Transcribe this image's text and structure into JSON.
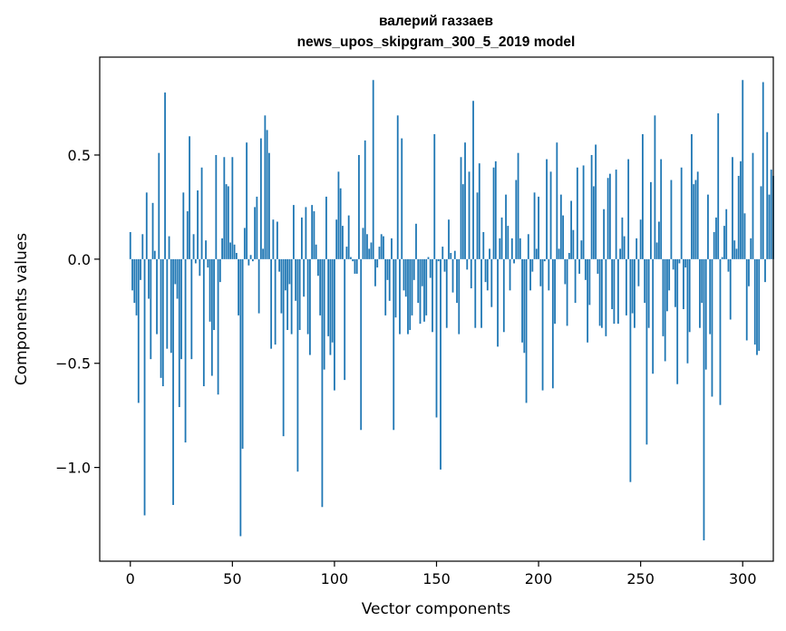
{
  "chart_data": {
    "type": "bar",
    "title_line1": "валерий газзаев",
    "title_line2": "news_upos_skipgram_300_5_2019 model",
    "xlabel": "Vector components",
    "ylabel": "Components values",
    "xlim": [
      -15,
      315
    ],
    "ylim": [
      -1.45,
      0.97
    ],
    "xticks": [
      {
        "value": 0,
        "label": "0"
      },
      {
        "value": 50,
        "label": "50"
      },
      {
        "value": 100,
        "label": "100"
      },
      {
        "value": 150,
        "label": "150"
      },
      {
        "value": 200,
        "label": "200"
      },
      {
        "value": 250,
        "label": "250"
      },
      {
        "value": 300,
        "label": "300"
      }
    ],
    "yticks": [
      {
        "value": 0.5,
        "label": "0.5"
      },
      {
        "value": 0.0,
        "label": "0.0"
      },
      {
        "value": -0.5,
        "label": "−0.5"
      },
      {
        "value": -1.0,
        "label": "−1.0"
      }
    ],
    "bar_color": "#1f77b4",
    "grid": false,
    "legend": "none",
    "values": [
      0.13,
      -0.15,
      -0.21,
      -0.27,
      -0.69,
      -0.1,
      0.12,
      -1.23,
      0.32,
      -0.19,
      -0.48,
      0.27,
      0.04,
      -0.36,
      0.51,
      -0.57,
      -0.61,
      0.8,
      -0.43,
      0.11,
      -0.45,
      -1.18,
      -0.12,
      -0.19,
      -0.71,
      -0.48,
      0.32,
      -0.88,
      0.23,
      0.59,
      -0.48,
      0.12,
      -0.02,
      0.33,
      -0.08,
      0.44,
      -0.61,
      0.09,
      -0.04,
      -0.3,
      -0.56,
      -0.34,
      0.5,
      -0.65,
      -0.11,
      0.1,
      0.49,
      0.36,
      0.35,
      0.08,
      0.49,
      0.07,
      0.03,
      -0.27,
      -1.33,
      -0.91,
      0.15,
      0.56,
      -0.03,
      0.02,
      -0.01,
      0.25,
      0.3,
      -0.26,
      0.58,
      0.05,
      0.69,
      0.62,
      0.51,
      -0.43,
      0.19,
      -0.41,
      0.18,
      -0.06,
      -0.26,
      -0.85,
      -0.15,
      -0.34,
      -0.12,
      -0.36,
      0.26,
      -0.2,
      -1.02,
      -0.34,
      0.2,
      -0.18,
      0.25,
      -0.36,
      -0.46,
      0.26,
      0.23,
      0.07,
      -0.08,
      -0.27,
      -1.19,
      -0.53,
      0.3,
      -0.37,
      -0.46,
      -0.4,
      -0.63,
      0.19,
      0.42,
      0.34,
      0.16,
      -0.58,
      0.06,
      0.21,
      0.01,
      -0.01,
      -0.07,
      -0.07,
      0.5,
      -0.82,
      0.15,
      0.57,
      0.12,
      0.05,
      0.08,
      0.86,
      -0.13,
      -0.04,
      0.06,
      0.12,
      0.11,
      -0.27,
      -0.1,
      -0.2,
      0.1,
      -0.82,
      -0.28,
      0.69,
      -0.36,
      0.58,
      -0.15,
      -0.18,
      -0.36,
      -0.34,
      -0.27,
      -0.1,
      0.17,
      -0.21,
      -0.31,
      -0.13,
      -0.3,
      -0.27,
      0.01,
      -0.09,
      -0.35,
      0.6,
      -0.76,
      -0.01,
      -1.01,
      0.06,
      -0.06,
      -0.33,
      0.19,
      0.03,
      -0.16,
      0.04,
      -0.21,
      -0.36,
      0.49,
      0.36,
      0.56,
      -0.05,
      0.42,
      -0.14,
      0.76,
      -0.33,
      0.32,
      0.46,
      -0.33,
      0.13,
      -0.11,
      -0.15,
      0.05,
      -0.23,
      0.44,
      0.47,
      -0.42,
      0.1,
      0.2,
      -0.35,
      0.31,
      0.16,
      -0.15,
      0.1,
      -0.02,
      0.38,
      0.51,
      0.1,
      -0.4,
      -0.45,
      -0.69,
      0.12,
      -0.15,
      -0.06,
      0.32,
      0.05,
      0.3,
      -0.13,
      -0.63,
      -0.01,
      0.48,
      -0.15,
      0.42,
      -0.62,
      -0.31,
      0.56,
      0.05,
      0.31,
      0.21,
      -0.12,
      -0.32,
      0.03,
      0.28,
      0.14,
      -0.21,
      0.44,
      -0.07,
      0.09,
      0.45,
      -0.1,
      -0.4,
      -0.22,
      0.5,
      0.35,
      0.55,
      -0.07,
      -0.32,
      -0.33,
      0.24,
      -0.37,
      0.39,
      0.41,
      -0.24,
      -0.31,
      0.43,
      -0.31,
      0.05,
      0.2,
      0.11,
      -0.27,
      0.48,
      -1.07,
      -0.26,
      -0.33,
      0.1,
      -0.13,
      0.19,
      0.6,
      -0.21,
      -0.89,
      -0.33,
      0.37,
      -0.55,
      0.69,
      0.08,
      0.18,
      0.48,
      -0.37,
      -0.49,
      -0.25,
      -0.15,
      0.38,
      -0.05,
      -0.23,
      -0.6,
      -0.02,
      0.44,
      -0.24,
      -0.04,
      -0.5,
      -0.35,
      0.6,
      0.36,
      0.38,
      0.42,
      -0.33,
      -0.21,
      -1.35,
      -0.53,
      0.31,
      -0.36,
      -0.66,
      0.13,
      0.2,
      0.7,
      -0.7,
      0.01,
      0.16,
      0.24,
      -0.06,
      -0.29,
      0.49,
      0.09,
      0.05,
      0.4,
      0.47,
      0.86,
      0.22,
      -0.39,
      -0.13,
      0.1,
      0.51,
      -0.41,
      -0.46,
      -0.44,
      0.35,
      0.85,
      -0.11,
      0.61,
      0.31,
      0.43,
      0.4
    ]
  }
}
